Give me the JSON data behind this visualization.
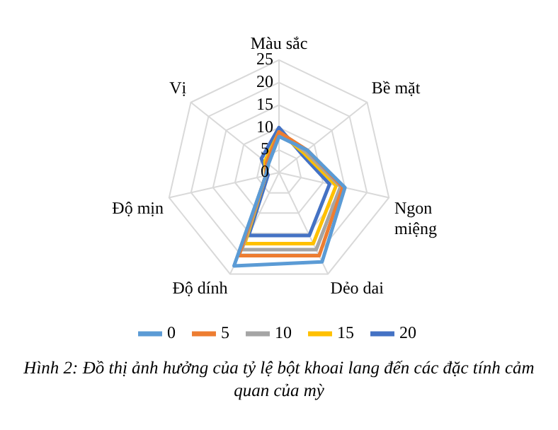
{
  "chart_data": {
    "type": "radar",
    "categories": [
      "Màu sắc",
      "Bề mặt",
      "Ngon miệng",
      "Dẻo dai",
      "Độ dính",
      "Độ mịn",
      "Vị"
    ],
    "series": [
      {
        "name": "0",
        "color": "#5b9bd5",
        "values": [
          8,
          8,
          15,
          22,
          23,
          3,
          3
        ]
      },
      {
        "name": "5",
        "color": "#ed7d31",
        "values": [
          9,
          8,
          14.5,
          20.5,
          20.5,
          3,
          3.5
        ]
      },
      {
        "name": "10",
        "color": "#a5a5a5",
        "values": [
          9,
          7.5,
          14,
          19,
          19,
          3,
          3.5
        ]
      },
      {
        "name": "15",
        "color": "#ffc000",
        "values": [
          9,
          7,
          13,
          17.5,
          17.5,
          3,
          4
        ]
      },
      {
        "name": "20",
        "color": "#4472c4",
        "values": [
          10,
          6.5,
          11.5,
          15.5,
          15.5,
          2.5,
          5
        ]
      }
    ],
    "ylim": [
      0,
      25
    ],
    "yticks": [
      0,
      5,
      10,
      15,
      20,
      25
    ],
    "grid": true,
    "legend": "bottom",
    "marker": "none",
    "line_style": "solid",
    "annotations": [
      "Hình 2: Đồ thị ảnh hưởng của tỷ lệ bột khoai lang đến các đặc tính cảm quan của mỳ"
    ]
  }
}
